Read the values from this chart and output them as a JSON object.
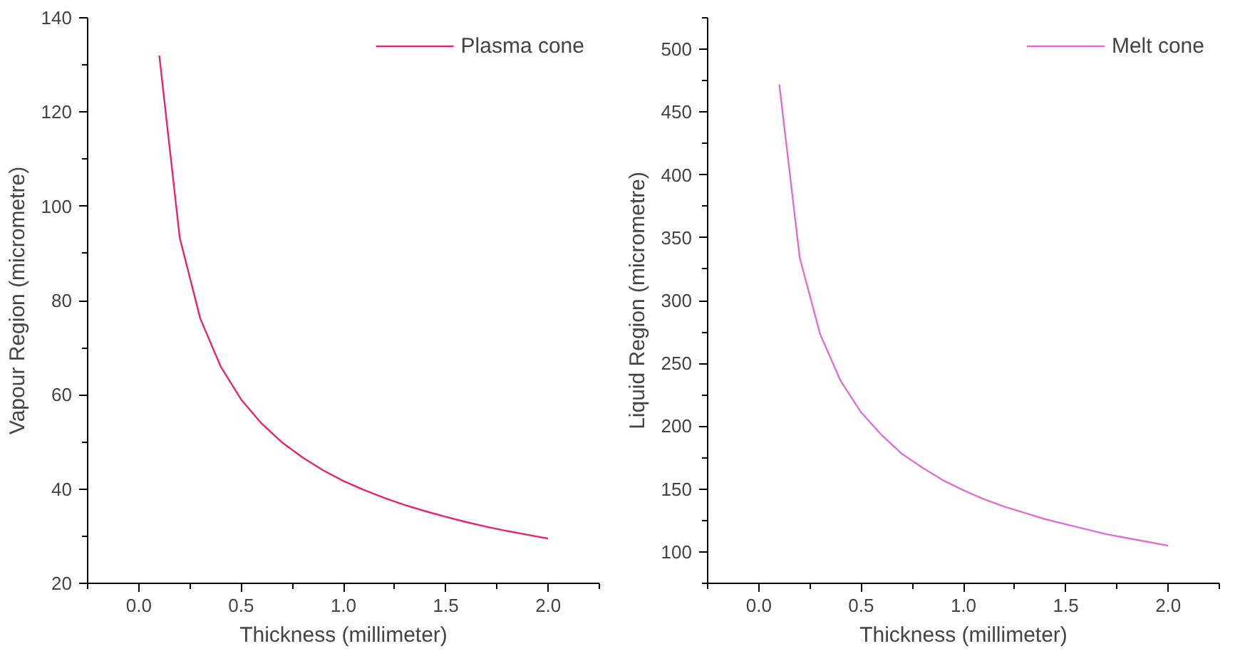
{
  "chart_data": [
    {
      "type": "line",
      "xlabel": "Thickness (millimeter)",
      "ylabel": "Vapour Region (micrometre)",
      "xlim": [
        -0.25,
        2.25
      ],
      "ylim": [
        20,
        140
      ],
      "xticks": [
        {
          "value": 0,
          "label": "0.0"
        },
        {
          "value": 0.5,
          "label": "0.5"
        },
        {
          "value": 1,
          "label": "1.0"
        },
        {
          "value": 1.5,
          "label": "1.5"
        },
        {
          "value": 2,
          "label": "2.0"
        }
      ],
      "yticks": [
        20,
        40,
        60,
        80,
        100,
        120,
        140
      ],
      "grid": false,
      "legend": "top right",
      "x": [
        0.1,
        0.2,
        0.3,
        0.4,
        0.5,
        0.6,
        0.7,
        0.8,
        0.9,
        1.0,
        1.1,
        1.2,
        1.3,
        1.4,
        1.5,
        1.6,
        1.7,
        1.8,
        1.9,
        2.0
      ],
      "series": [
        {
          "name": "Plasma cone",
          "color": "#e8246e",
          "values": [
            132,
            93.3,
            76.2,
            66,
            59,
            53.9,
            49.9,
            46.7,
            44,
            41.7,
            39.8,
            38.1,
            36.6,
            35.3,
            34.1,
            33,
            32,
            31.1,
            30.3,
            29.5
          ]
        }
      ]
    },
    {
      "type": "line",
      "xlabel": "Thickness (millimeter)",
      "ylabel": "Liquid Region (micrometre)",
      "xlim": [
        -0.25,
        2.25
      ],
      "ylim": [
        75,
        525
      ],
      "xticks": [
        {
          "value": 0,
          "label": "0.0"
        },
        {
          "value": 0.5,
          "label": "0.5"
        },
        {
          "value": 1,
          "label": "1.0"
        },
        {
          "value": 1.5,
          "label": "1.5"
        },
        {
          "value": 2,
          "label": "2.0"
        }
      ],
      "yticks": [
        100,
        150,
        200,
        250,
        300,
        350,
        400,
        450,
        500
      ],
      "grid": false,
      "legend": "top right",
      "x": [
        0.1,
        0.2,
        0.3,
        0.4,
        0.5,
        0.6,
        0.7,
        0.8,
        0.9,
        1.0,
        1.1,
        1.2,
        1.3,
        1.4,
        1.5,
        1.6,
        1.7,
        1.8,
        1.9,
        2.0
      ],
      "series": [
        {
          "name": "Melt cone",
          "color": "#e070d0",
          "values": [
            472,
            334,
            273,
            236,
            211,
            193,
            178,
            167,
            157,
            149,
            142,
            136,
            131,
            126,
            122,
            118,
            114,
            111,
            108,
            105
          ]
        }
      ]
    }
  ]
}
